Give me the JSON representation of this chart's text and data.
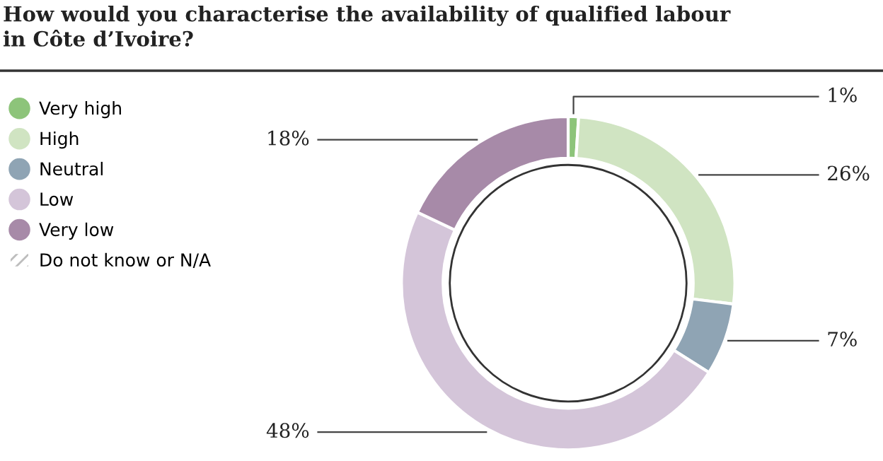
{
  "chart_data": {
    "type": "donut",
    "title": "How would you characterise the availability of qualified labour\nin Côte d’Ivoire?",
    "categories": [
      "Very high",
      "High",
      "Neutral",
      "Low",
      "Very low",
      "Do not know or N/A"
    ],
    "values": [
      1,
      26,
      7,
      48,
      18,
      0
    ],
    "colors": [
      "#8dc47a",
      "#d0e4c2",
      "#8fa4b4",
      "#d4c5d9",
      "#a78aa8",
      "#bdbdbd"
    ],
    "value_labels": [
      "1%",
      "26%",
      "7%",
      "48%",
      "18%",
      null
    ],
    "legend": "left"
  }
}
